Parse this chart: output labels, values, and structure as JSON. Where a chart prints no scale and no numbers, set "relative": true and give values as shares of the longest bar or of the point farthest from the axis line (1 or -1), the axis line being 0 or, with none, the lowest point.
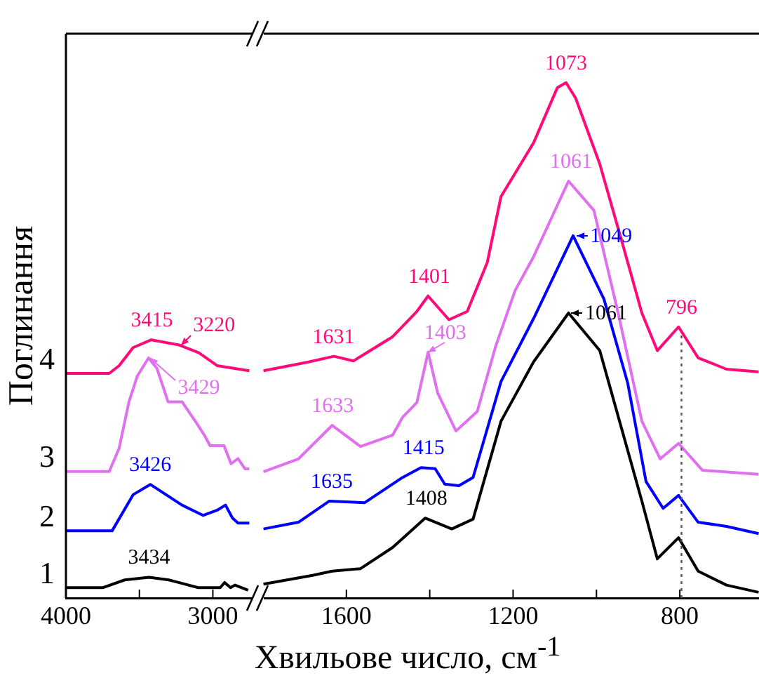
{
  "chart_data": [
    {
      "type": "line",
      "relative": true,
      "ylabel": "Поглинання",
      "xlim": [
        4000,
        2730
      ],
      "xticks": [
        4000,
        {
          "value": 3500,
          "label": null
        },
        3000
      ],
      "legend": false,
      "grid": false,
      "series": [
        {
          "name": "1",
          "color": "#000000",
          "x": [
            4000,
            3750,
            3600,
            3434,
            3300,
            3100,
            2950,
            2920,
            2880,
            2850,
            2760
          ],
          "values": [
            0.04,
            0.04,
            0.07,
            0.08,
            0.07,
            0.04,
            0.04,
            0.06,
            0.04,
            0.05,
            0.03
          ]
        },
        {
          "name": "2",
          "color": "#0000ff",
          "x": [
            4000,
            3686,
            3543,
            3426,
            3210,
            3067,
            2971,
            2914,
            2867,
            2829,
            2752
          ],
          "values": [
            0.26,
            0.26,
            0.4,
            0.44,
            0.36,
            0.32,
            0.34,
            0.36,
            0.31,
            0.29,
            0.29
          ]
        },
        {
          "name": "3",
          "color": "#e070f0",
          "x": [
            4000,
            3705,
            3638,
            3571,
            3514,
            3438,
            3381,
            3305,
            3210,
            3114,
            3057,
            3019,
            2924,
            2876,
            2829,
            2781,
            2752
          ],
          "values": [
            0.49,
            0.49,
            0.58,
            0.76,
            0.86,
            0.93,
            0.89,
            0.76,
            0.76,
            0.68,
            0.63,
            0.59,
            0.59,
            0.52,
            0.54,
            0.5,
            0.5
          ]
        },
        {
          "name": "4",
          "color": "#ff0a78",
          "x": [
            4000,
            3705,
            3638,
            3543,
            3419,
            3229,
            3095,
            2971,
            2752
          ],
          "values": [
            0.87,
            0.87,
            0.9,
            0.97,
            1,
            0.98,
            0.95,
            0.9,
            0.88
          ]
        }
      ],
      "annotations": [
        {
          "text": "3434",
          "x": 3434,
          "y": 0.08
        },
        {
          "text": "3426",
          "x": 3426,
          "y": 0.44
        },
        {
          "text": "3429",
          "x": 3429,
          "y": 0.93
        },
        {
          "text": "3415",
          "x": 3415,
          "y": 1
        },
        {
          "text": "3220",
          "x": 3220,
          "y": 0.98
        }
      ]
    },
    {
      "type": "line",
      "relative": true,
      "xlabel": "Хвильове число, см$^{-1}$",
      "xlim": [
        1805,
        610
      ],
      "xticks": [
        1600,
        {
          "value": 1400,
          "label": null
        },
        1200,
        {
          "value": 1000,
          "label": null
        },
        800
      ],
      "legend": false,
      "grid": false,
      "series": [
        {
          "color": "#000000",
          "x": [
            1799,
            1681,
            1634,
            1566,
            1489,
            1411,
            1347,
            1296,
            1229,
            1151,
            1067,
            992,
            938,
            891,
            854,
            803,
            756,
            688,
            611
          ],
          "values": [
            0.027,
            0.044,
            0.052,
            0.057,
            0.098,
            0.155,
            0.134,
            0.153,
            0.343,
            0.458,
            0.553,
            0.48,
            0.324,
            0.188,
            0.076,
            0.117,
            0.052,
            0.025,
            0.011
          ]
        },
        {
          "color": "#0000ff",
          "x": [
            1799,
            1715,
            1641,
            1556,
            1465,
            1421,
            1387,
            1364,
            1330,
            1296,
            1229,
            1151,
            1056,
            982,
            925,
            881,
            840,
            803,
            756,
            688,
            611
          ],
          "values": [
            0.134,
            0.147,
            0.188,
            0.185,
            0.234,
            0.253,
            0.251,
            0.221,
            0.218,
            0.234,
            0.42,
            0.542,
            0.703,
            0.58,
            0.417,
            0.226,
            0.174,
            0.199,
            0.147,
            0.139,
            0.125
          ]
        },
        {
          "color": "#e070f0",
          "x": [
            1799,
            1715,
            1634,
            1566,
            1489,
            1465,
            1431,
            1404,
            1381,
            1337,
            1286,
            1242,
            1195,
            1151,
            1067,
            1006,
            948,
            891,
            847,
            803,
            746,
            611
          ],
          "values": [
            0.245,
            0.27,
            0.335,
            0.294,
            0.316,
            0.351,
            0.379,
            0.477,
            0.398,
            0.324,
            0.362,
            0.488,
            0.597,
            0.662,
            0.809,
            0.752,
            0.553,
            0.343,
            0.27,
            0.3,
            0.248,
            0.24
          ]
        },
        {
          "color": "#ff0a78",
          "x": [
            1799,
            1691,
            1630,
            1583,
            1489,
            1431,
            1404,
            1354,
            1310,
            1262,
            1229,
            1151,
            1094,
            1073,
            1050,
            992,
            938,
            891,
            854,
            803,
            756,
            688,
            611
          ],
          "values": [
            0.441,
            0.458,
            0.469,
            0.46,
            0.507,
            0.556,
            0.586,
            0.54,
            0.556,
            0.651,
            0.779,
            0.883,
            0.99,
            1,
            0.97,
            0.842,
            0.689,
            0.553,
            0.48,
            0.526,
            0.466,
            0.444,
            0.439
          ]
        }
      ],
      "ref_lines": [
        {
          "axis": "x",
          "value": 796,
          "color": "#555555",
          "line_style": "dotted"
        }
      ],
      "annotations": [
        {
          "text": "1408",
          "x": 1408,
          "y": 0.155
        },
        {
          "text": "1635",
          "x": 1635,
          "y": 0.188
        },
        {
          "text": "1415",
          "x": 1415,
          "y": 0.253
        },
        {
          "text": "1633",
          "x": 1633,
          "y": 0.335
        },
        {
          "text": "1403",
          "x": 1403,
          "y": 0.477
        },
        {
          "text": "1631",
          "x": 1631,
          "y": 0.469
        },
        {
          "text": "1401",
          "x": 1401,
          "y": 0.586
        },
        {
          "text": "1061",
          "x": 1061,
          "y": 0.553
        },
        {
          "text": "1049",
          "x": 1049,
          "y": 0.703
        },
        {
          "text": "1061",
          "x": 1061,
          "y": 0.809
        },
        {
          "text": "1073",
          "x": 1073,
          "y": 1
        },
        {
          "text": "796",
          "x": 796,
          "y": 0.526
        }
      ]
    }
  ]
}
